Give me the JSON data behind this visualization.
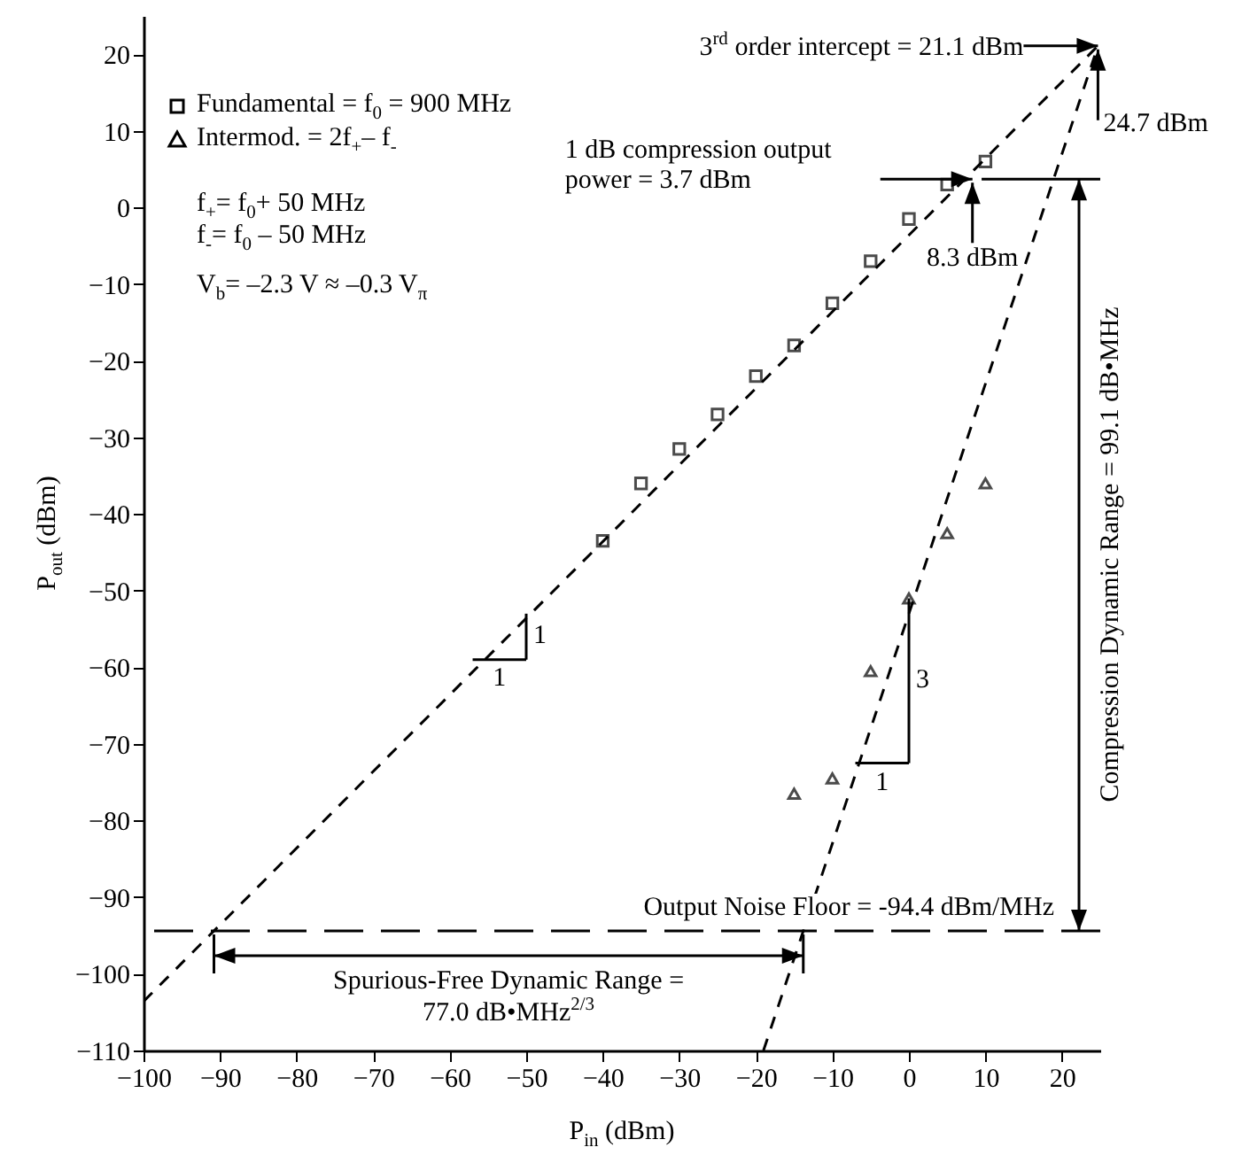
{
  "chart_data": {
    "type": "scatter",
    "xlabel": "P$_{in}$ (dBm)",
    "ylabel": "P$_{out}$ (dBm)",
    "xlim": [
      -100,
      25
    ],
    "ylim": [
      -110,
      25
    ],
    "xticks": [
      -100,
      -90,
      -80,
      -70,
      -60,
      -50,
      -40,
      -30,
      -20,
      -10,
      0,
      10,
      20
    ],
    "yticks": [
      -110,
      -100,
      -90,
      -80,
      -70,
      -60,
      -50,
      -40,
      -30,
      -20,
      -10,
      0,
      10,
      20
    ],
    "grid": false,
    "legend": "top left",
    "series": [
      {
        "name": "Fundamental = f$_{0}$ = 900 MHz",
        "type": "scatter",
        "marker": "square",
        "color": "#000000",
        "x": [
          -40,
          -35,
          -30,
          -25,
          -20,
          -15,
          -10,
          -5,
          0,
          5,
          10
        ],
        "values": [
          -43.5,
          -36,
          -31.5,
          -27,
          -22,
          -18,
          -12.5,
          -7,
          -1.5,
          3,
          6
        ]
      },
      {
        "name": "Intermod. = 2f$_{+}$– f$_{-}$",
        "type": "scatter",
        "marker": "triangle",
        "color": "#000000",
        "x": [
          -15,
          -10,
          -5,
          0,
          5,
          10
        ],
        "values": [
          -76.5,
          -74.5,
          -60.5,
          -51,
          -42.5,
          -36
        ]
      },
      {
        "type": "line",
        "line_style": "dashed",
        "color": "#000000",
        "x": [
          -100,
          24.7
        ],
        "values": [
          -103.6,
          21.1
        ]
      },
      {
        "type": "line",
        "line_style": "dashed",
        "color": "#000000",
        "x": [
          -19,
          24.7
        ],
        "values": [
          -110,
          21.1
        ]
      },
      {
        "type": "line",
        "line_style": "solid",
        "color": "#000000",
        "x": [
          9.5,
          25
        ],
        "values": [
          3.7,
          3.7
        ]
      }
    ],
    "ref_lines": [
      {
        "axis": "y",
        "value": -94.4,
        "label": "Output Noise Floor = -94.4 dBm/MHz",
        "line_style": "dashed",
        "color": "#000000"
      }
    ],
    "annotations": [
      {
        "text": "3$^{rd}$ order intercept = 21.1 dBm",
        "x": 24.7,
        "y": 21.1
      },
      {
        "text": "24.7 dBm",
        "x": 24.7,
        "y": 21.1
      },
      "1 dB compression output power = 3.7 dBm",
      {
        "text": "8.3 dBm",
        "x": 8.3,
        "y": 3.7
      },
      "Compression Dynamic Range = 99.1 dB•MHz",
      "Spurious-Free Dynamic Range = 77.0 dB•MHz$^{2/3}$",
      "f$_{+}$= f$_{0}$+ 50 MHz",
      "f$_{-}$= f$_{0}$ – 50 MHz",
      "V$_{b}$= –2.3 V ≈ –0.3 V$_{π}$",
      "1",
      "1",
      {
        "text": "1",
        "x": 0,
        "y": -51
      },
      "3"
    ]
  }
}
